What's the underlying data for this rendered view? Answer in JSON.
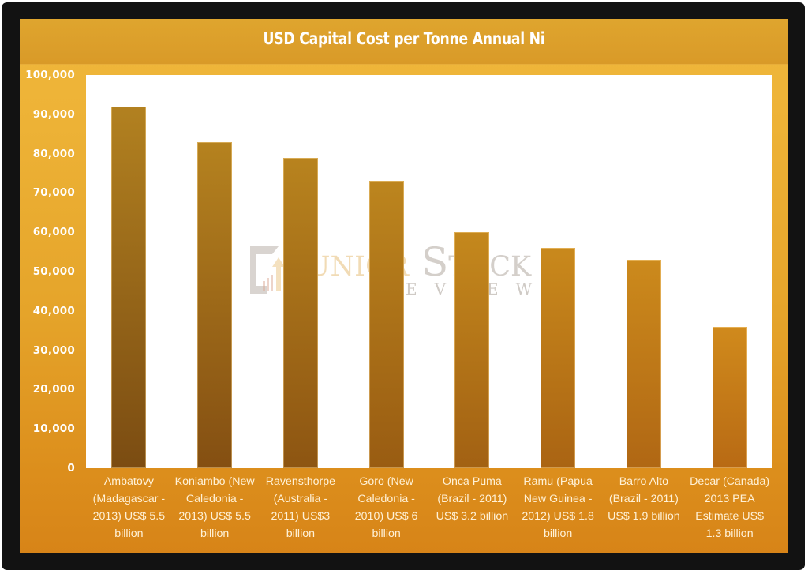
{
  "chart_data": {
    "type": "bar",
    "title": "USD Capital Cost per Tonne Annual Ni",
    "xlabel": "",
    "ylabel": "",
    "ylim": [
      0,
      100000
    ],
    "yticks": [
      0,
      10000,
      20000,
      30000,
      40000,
      50000,
      60000,
      70000,
      80000,
      90000,
      100000
    ],
    "ytick_labels": [
      "0",
      "10,000",
      "20,000",
      "30,000",
      "40,000",
      "50,000",
      "60,000",
      "70,000",
      "80,000",
      "90,000",
      "100,000"
    ],
    "grid": false,
    "legend": null,
    "categories": [
      "Ambatovy (Madagascar - 2013) US$ 5.5 billion",
      "Koniambo (New Caledonia - 2013) US$ 5.5 billion",
      "Ravensthorpe (Australia - 2011) US$3 billion",
      "Goro (New Caledonia - 2010) US$ 6 billion",
      "Onca Puma (Brazil - 2011) US$ 3.2 billion",
      "Ramu (Papua New Guinea - 2012) US$ 1.8 billion",
      "Barro Alto (Brazil - 2011) US$ 1.9 billion",
      "Decar (Canada) 2013 PEA Estimate US$ 1.3 billion"
    ],
    "category_lines": [
      [
        "Ambatovy",
        "(Madagascar -",
        "2013) US$ 5.5",
        "billion"
      ],
      [
        "Koniambo (New",
        "Caledonia -",
        "2013) US$ 5.5",
        "billion"
      ],
      [
        "Ravensthorpe",
        "(Australia -",
        "2011) US$3",
        "billion"
      ],
      [
        "Goro (New",
        "Caledonia -",
        "2010) US$ 6",
        "billion"
      ],
      [
        "Onca Puma",
        "(Brazil - 2011)",
        "US$ 3.2 billion"
      ],
      [
        "Ramu (Papua",
        "New Guinea -",
        "2012) US$ 1.8",
        "billion"
      ],
      [
        "Barro Alto",
        "(Brazil - 2011)",
        "US$ 1.9 billion"
      ],
      [
        "Decar (Canada)",
        "2013 PEA",
        "Estimate US$",
        "1.3 billion"
      ]
    ],
    "values": [
      92000,
      83000,
      79000,
      73000,
      60000,
      56000,
      53000,
      36000
    ],
    "bar_colors": [
      {
        "top": "#B28120",
        "bottom": "#7B4C12"
      },
      {
        "top": "#B5821F",
        "bottom": "#844F12"
      },
      {
        "top": "#B8831E",
        "bottom": "#8D5512"
      },
      {
        "top": "#BC851E",
        "bottom": "#995C12"
      },
      {
        "top": "#C4881D",
        "bottom": "#A26113"
      },
      {
        "top": "#C9891C",
        "bottom": "#AA6413"
      },
      {
        "top": "#CC8A1C",
        "bottom": "#B06714"
      },
      {
        "top": "#D08A1C",
        "bottom": "#B86A14"
      }
    ]
  },
  "watermark": {
    "word1": "Junior",
    "word2": "Stock",
    "sub": "REVIEW"
  },
  "colors": {
    "frame": "#121212",
    "title_band": "#DBA02C",
    "panel_top": "#F0B83C",
    "panel_bottom": "#D78418",
    "plot_bg": "#FFFFFF",
    "text": "#FFFFFF"
  }
}
